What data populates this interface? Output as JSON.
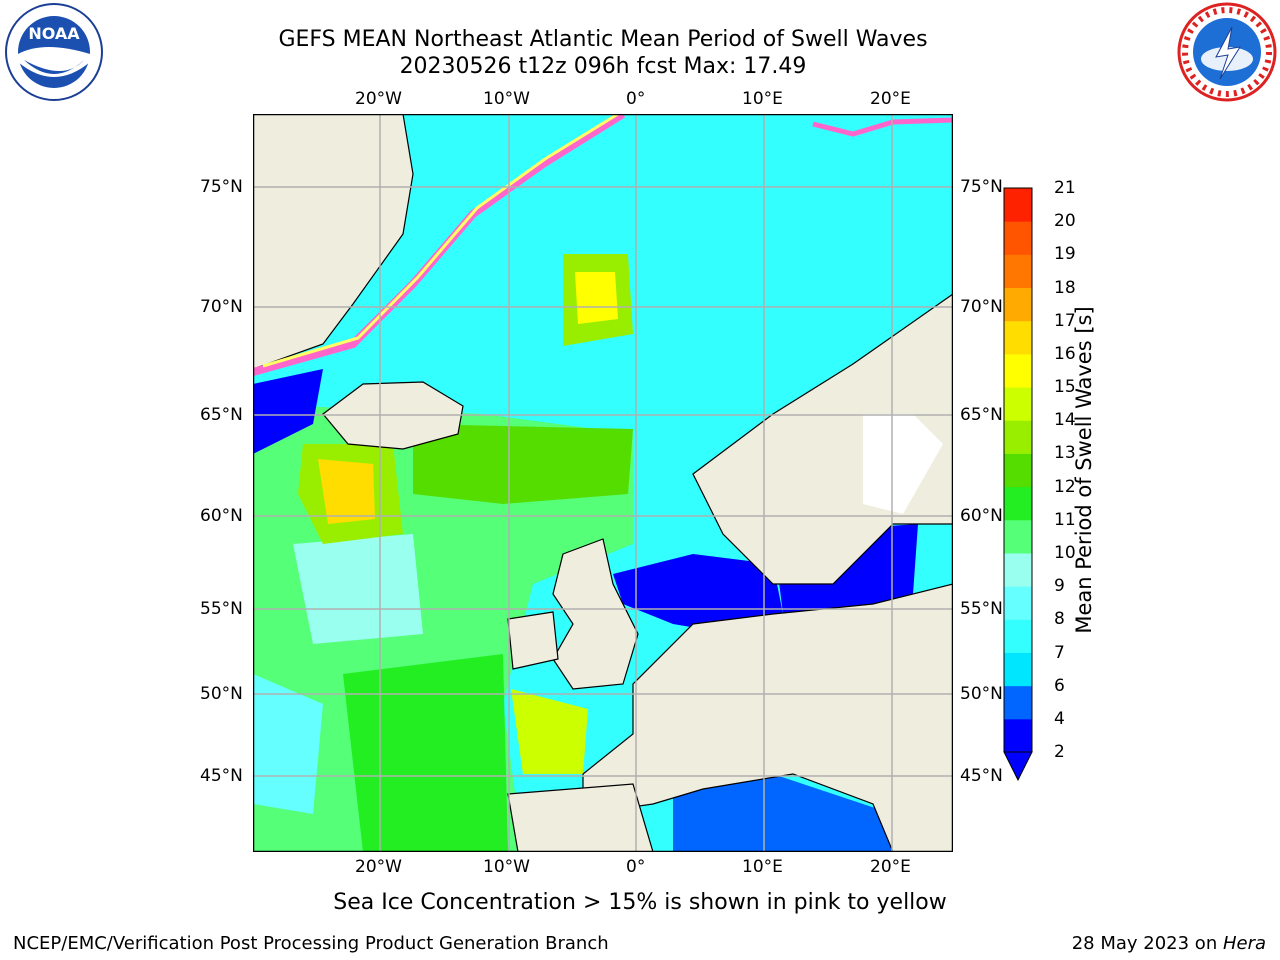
{
  "header": {
    "title_line1": "GEFS MEAN Northeast Atlantic Mean Period of Swell Waves",
    "title_line2": "20230526 t12z 096h fcst   Max: 17.49"
  },
  "logos": {
    "noaa_text": "NOAA",
    "noaa_ring_text": "NATIONAL OCEANIC AND ATMOSPHERIC ADMINISTRATION • U.S. DEPARTMENT OF COMMERCE",
    "nws_ring_text": "NATIONAL WEATHER SERVICE"
  },
  "map": {
    "lon_labels": [
      "20°W",
      "10°W",
      "0°",
      "10°E",
      "20°E"
    ],
    "lat_labels": [
      "75°N",
      "70°N",
      "65°N",
      "60°N",
      "55°N",
      "50°N",
      "45°N"
    ],
    "colors": {
      "land": "#eeedde",
      "ice_pink": "#ff66cc",
      "ice_yellow": "#ffff66",
      "grid": "#b0b0b0"
    }
  },
  "colorbar": {
    "label": "Mean Period of Swell Waves [s]",
    "ticks": [
      "2",
      "4",
      "6",
      "7",
      "8",
      "9",
      "10",
      "11",
      "12",
      "13",
      "14",
      "15",
      "16",
      "17",
      "18",
      "19",
      "20",
      "21"
    ],
    "colors": [
      "#0000ff",
      "#0066ff",
      "#00e6ff",
      "#33ffff",
      "#66ffff",
      "#99ffee",
      "#55ff77",
      "#22ee22",
      "#55dd00",
      "#99ee00",
      "#ccff00",
      "#ffff00",
      "#ffdd00",
      "#ffaa00",
      "#ff7700",
      "#ff5500",
      "#ff2200",
      "#ff0000"
    ]
  },
  "note": "Sea Ice Concentration > 15% is shown in pink to yellow",
  "footer": {
    "left": "NCEP/EMC/Verification Post Processing Product Generation Branch",
    "date": "28 May 2023 on ",
    "machine": "Hera"
  }
}
